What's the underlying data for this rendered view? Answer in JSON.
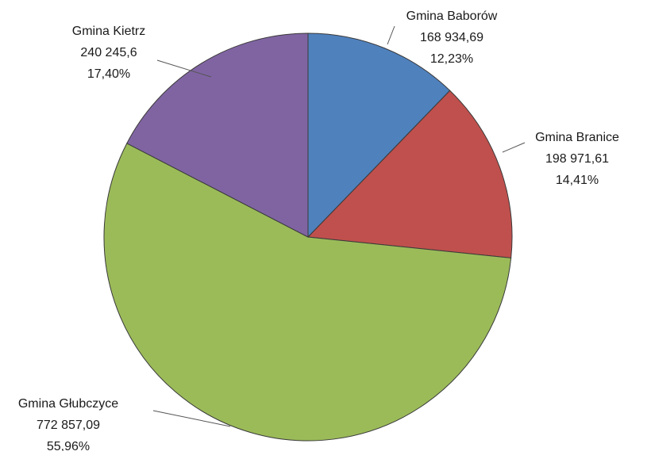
{
  "chart_data": {
    "type": "pie",
    "title": "",
    "start_angle_deg": 0,
    "direction": "clockwise",
    "slices": [
      {
        "label": "Gmina Baborów",
        "value_text": "168 934,69",
        "value": 168934.69,
        "percent_text": "12,23%",
        "percent": 12.23,
        "color": "#4f81bd"
      },
      {
        "label": "Gmina Branice",
        "value_text": "198 971,61",
        "value": 198971.61,
        "percent_text": "14,41%",
        "percent": 14.41,
        "color": "#c0504d"
      },
      {
        "label": "Gmina Głubczyce",
        "value_text": "772 857,09",
        "value": 772857.09,
        "percent_text": "55,96%",
        "percent": 55.96,
        "color": "#9bbb59"
      },
      {
        "label": "Gmina Kietrz",
        "value_text": "240 245,6",
        "value": 240245.6,
        "percent_text": "17,40%",
        "percent": 17.4,
        "color": "#8064a2"
      }
    ],
    "legend": "none",
    "data_labels": "outside with leader lines"
  }
}
